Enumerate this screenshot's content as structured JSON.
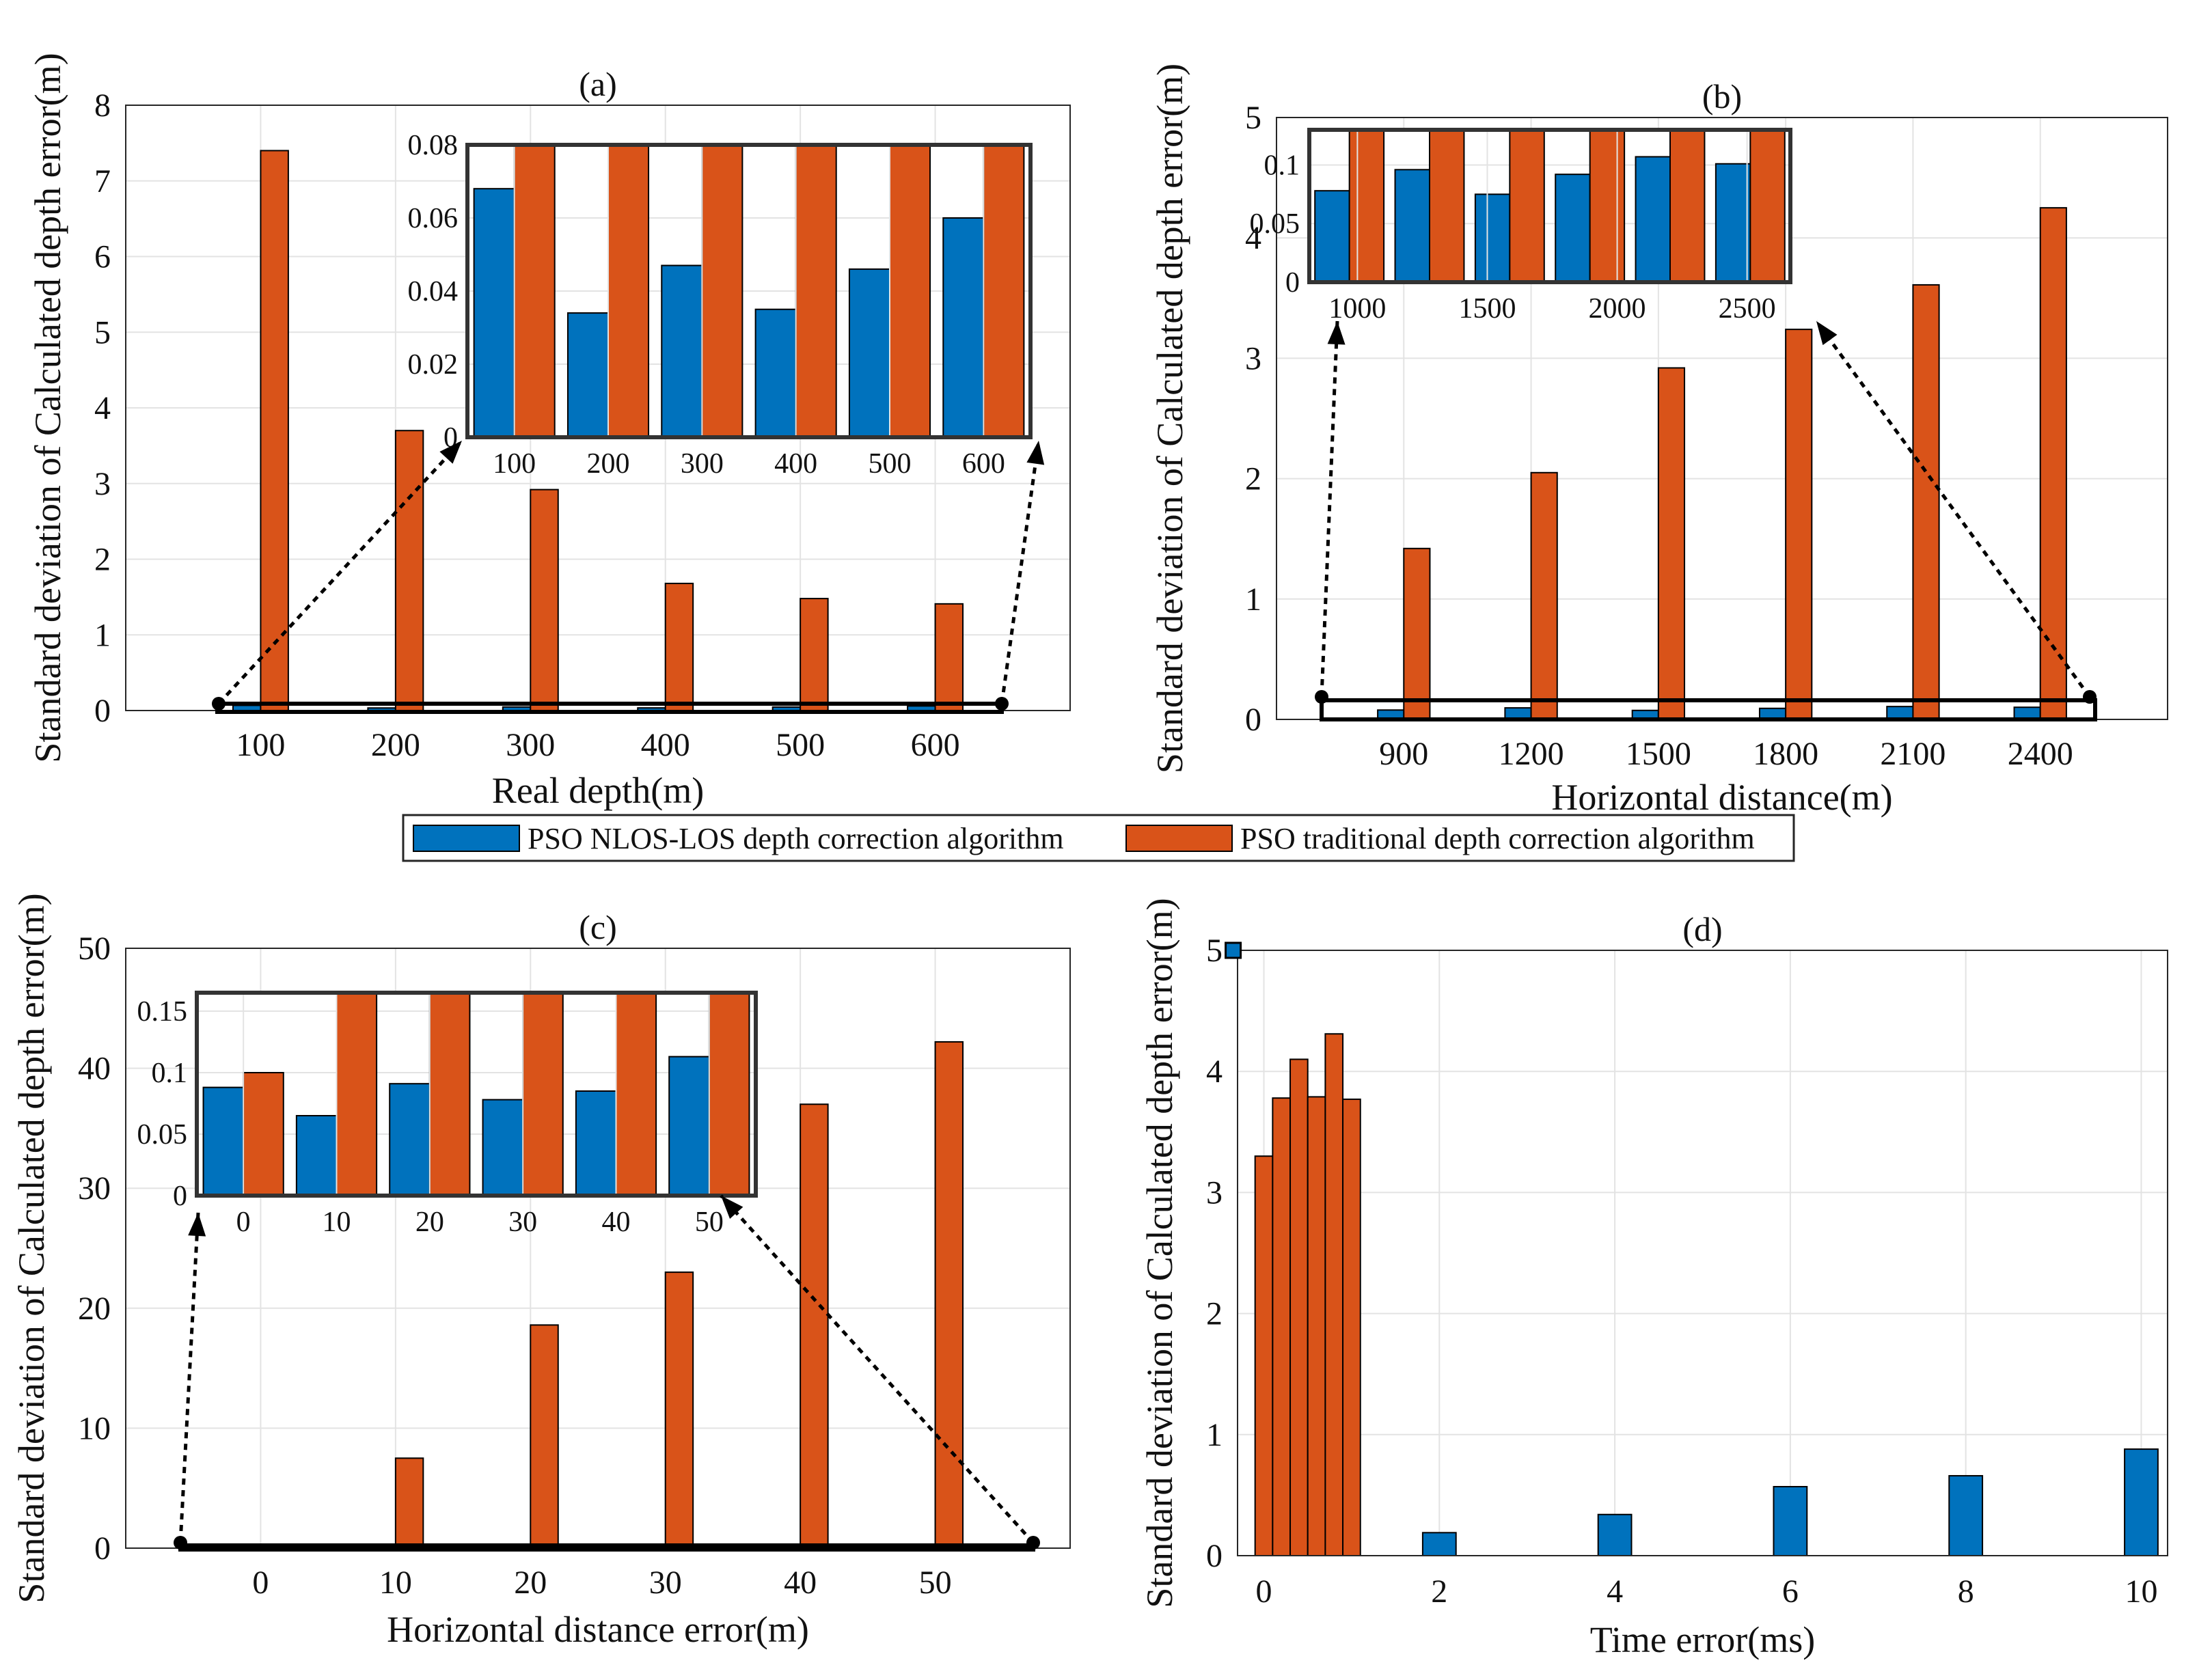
{
  "series_names": [
    "PSO NLOS-LOS depth correction algorithm",
    "PSO traditional depth correction algorithm"
  ],
  "colors": {
    "nlos": "#0072BD",
    "trad": "#D95319",
    "grid": "#e3e3e3",
    "axis": "#262626"
  },
  "legend": {
    "placement": "center, between rows"
  },
  "chart_data": [
    {
      "id": "a",
      "type": "bar",
      "title": "(a)",
      "xlabel": "Real depth(m)",
      "ylabel": "Standard deviation of Calculated depth error(m)",
      "categories": [
        "100",
        "200",
        "300",
        "400",
        "500",
        "600"
      ],
      "ylim": [
        0,
        8
      ],
      "yticks": [
        0,
        1,
        2,
        3,
        4,
        5,
        6,
        7,
        8
      ],
      "series": [
        {
          "name": "PSO NLOS-LOS depth correction algorithm",
          "values": [
            0.068,
            0.034,
            0.047,
            0.035,
            0.046,
            0.06
          ]
        },
        {
          "name": "PSO traditional depth correction algorithm",
          "values": [
            7.4,
            3.7,
            2.92,
            1.68,
            1.48,
            1.41
          ]
        }
      ],
      "inset": {
        "ylim": [
          0,
          0.08
        ],
        "yticks": [
          "0",
          "0.02",
          "0.04",
          "0.06",
          "0.08"
        ],
        "xticks": [
          "100",
          "200",
          "300",
          "400",
          "500",
          "600"
        ]
      }
    },
    {
      "id": "b",
      "type": "bar",
      "title": "(b)",
      "xlabel": "Horizontal distance(m)",
      "ylabel": "Standard deviation of Calculated depth error(m)",
      "categories": [
        "900",
        "1200",
        "1500",
        "1800",
        "2100",
        "2400"
      ],
      "ylim": [
        0,
        5
      ],
      "yticks": [
        0,
        1,
        2,
        3,
        4,
        5
      ],
      "series": [
        {
          "name": "PSO NLOS-LOS depth correction algorithm",
          "values": [
            0.078,
            0.096,
            0.075,
            0.092,
            0.107,
            0.101
          ]
        },
        {
          "name": "PSO traditional depth correction algorithm",
          "values": [
            1.42,
            2.05,
            2.92,
            3.24,
            3.61,
            4.25
          ]
        }
      ],
      "inset": {
        "ylim": [
          0,
          0.13
        ],
        "yticks": [
          "0",
          "0.05",
          "0.1"
        ],
        "xticks": [
          "1000",
          "1500",
          "2000",
          "2500"
        ]
      }
    },
    {
      "id": "c",
      "type": "bar",
      "title": "(c)",
      "xlabel": "Horizontal distance error(m)",
      "ylabel": "Standard deviation of Calculated depth error(m)",
      "categories": [
        "0",
        "10",
        "20",
        "30",
        "40",
        "50"
      ],
      "ylim": [
        0,
        50
      ],
      "yticks": [
        0,
        10,
        20,
        30,
        40,
        50
      ],
      "series": [
        {
          "name": "PSO NLOS-LOS depth correction algorithm",
          "values": [
            0.088,
            0.065,
            0.091,
            0.078,
            0.085,
            0.113
          ]
        },
        {
          "name": "PSO traditional depth correction algorithm",
          "values": [
            0.1,
            7.5,
            18.6,
            23.0,
            37.0,
            42.2
          ]
        }
      ],
      "inset": {
        "ylim": [
          0,
          0.165
        ],
        "yticks": [
          "0",
          "0.05",
          "0.1",
          "0.15"
        ],
        "xticks": [
          "0",
          "10",
          "20",
          "30",
          "40",
          "50"
        ]
      }
    },
    {
      "id": "d",
      "type": "bar",
      "title": "(d)",
      "xlabel": "Time error(ms)",
      "ylabel": "Standard deviation of Calculated depth error(m)",
      "ylim": [
        0,
        5
      ],
      "yticks": [
        0,
        1,
        2,
        3,
        4,
        5
      ],
      "xticks": [
        0,
        2,
        4,
        6,
        8,
        10
      ],
      "xlim": [
        -0.3,
        10.3
      ],
      "series": [
        {
          "name": "PSO traditional depth correction algorithm",
          "x": [
            0.0,
            0.2,
            0.4,
            0.6,
            0.8,
            1.0
          ],
          "values": [
            3.3,
            3.78,
            4.1,
            3.79,
            4.31,
            3.77
          ]
        },
        {
          "name": "PSO NLOS-LOS depth correction algorithm",
          "x": [
            2,
            4,
            6,
            8,
            10
          ],
          "values": [
            0.19,
            0.34,
            0.57,
            0.66,
            0.88
          ]
        }
      ],
      "annotations": [
        {
          "type": "square-marker",
          "x": -0.35,
          "y": 5.0
        }
      ]
    }
  ]
}
